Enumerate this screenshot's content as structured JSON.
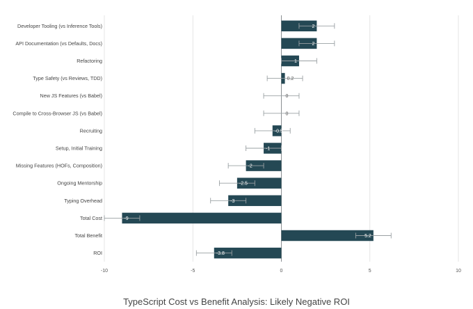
{
  "chart_data": {
    "type": "bar",
    "orientation": "horizontal",
    "title": "TypeScript Cost vs Benefit Analysis: Likely Negative ROI",
    "categories": [
      "Developer Tooling (vs Inference Tools)",
      "API Documentation (vs Defaults, Docs)",
      "Refactoring",
      "Type Safety (vs Reviews, TDD)",
      "New JS Features (vs Babel)",
      "Compile to Cross-Browser JS (vs Babel)",
      "Recruiting",
      "Setup, Initial Training",
      "Missing Features (HOFs, Composition)",
      "Ongoing Mentorship",
      "Typing Overhead",
      "Total Cost",
      "Total Benefit",
      "ROI"
    ],
    "values": [
      2,
      2,
      1,
      0.2,
      0,
      0,
      -0.5,
      -1,
      -2,
      -2.5,
      -3,
      -9,
      5.2,
      -3.8
    ],
    "data_labels": [
      "2",
      "2",
      "1",
      "0.2",
      "0",
      "0",
      "-0.5",
      "-1",
      "-2",
      "-2.5",
      "-3",
      "-9",
      "5.2",
      "-3.8"
    ],
    "error_bars": [
      [
        1,
        3
      ],
      [
        1,
        3
      ],
      [
        0,
        2
      ],
      [
        -0.8,
        1.2
      ],
      [
        -1,
        1
      ],
      [
        -1,
        1
      ],
      [
        -1.5,
        0.5
      ],
      [
        -2,
        0
      ],
      [
        -3,
        -1
      ],
      [
        -3.5,
        -1.5
      ],
      [
        -4,
        -2
      ],
      [
        -10,
        -8
      ],
      [
        4.2,
        6.2
      ],
      [
        -4.8,
        -2.8
      ]
    ],
    "xlim": [
      -10,
      10
    ],
    "x_ticks": [
      -10,
      -5,
      0,
      5,
      10
    ],
    "x_tick_labels": [
      "-10",
      "-5",
      "0",
      "5",
      "10"
    ],
    "grid": "vertical",
    "legend": "none",
    "bar_color": "#244854",
    "error_bar_color": "#9aa0a3"
  }
}
